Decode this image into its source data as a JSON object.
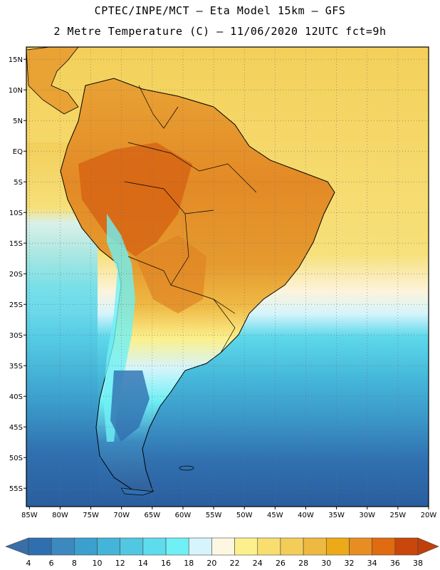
{
  "title_line1": "CPTEC/INPE/MCT –  Eta Model 15km – GFS",
  "title_line2": "2 Metre Temperature (C) – 11/06/2020 12UTC fct=9h",
  "map": {
    "lat_labels": [
      "15N",
      "10N",
      "5N",
      "EQ",
      "5S",
      "10S",
      "15S",
      "20S",
      "25S",
      "30S",
      "35S",
      "40S",
      "45S",
      "50S",
      "55S"
    ],
    "lon_labels": [
      "85W",
      "80W",
      "75W",
      "70W",
      "65W",
      "60W",
      "55W",
      "50W",
      "45W",
      "40W",
      "35W",
      "30W",
      "25W",
      "20W"
    ],
    "lat_values": [
      15,
      10,
      5,
      0,
      -5,
      -10,
      -15,
      -20,
      -25,
      -30,
      -35,
      -40,
      -45,
      -50,
      -55
    ],
    "lon_values": [
      -85,
      -80,
      -75,
      -70,
      -65,
      -60,
      -55,
      -50,
      -45,
      -40,
      -35,
      -30,
      -25,
      -20
    ],
    "extent": {
      "lon_min": -85.5,
      "lon_max": -20,
      "lat_min": -58,
      "lat_max": 17
    }
  },
  "colorbar": {
    "labels": [
      "4",
      "6",
      "8",
      "10",
      "12",
      "14",
      "16",
      "18",
      "20",
      "22",
      "24",
      "26",
      "28",
      "30",
      "32",
      "34",
      "36",
      "38"
    ],
    "colors": [
      "#3a6ea8",
      "#2f6fb0",
      "#3c89c0",
      "#3ba0cd",
      "#44b5d8",
      "#52c7e2",
      "#5edcec",
      "#6ff0f5",
      "#d6f4fb",
      "#fdf7e2",
      "#fbf08c",
      "#f7de6e",
      "#f3cd58",
      "#eeb941",
      "#ecaa19",
      "#e88d22",
      "#e06b10",
      "#c9470a",
      "#c0400a"
    ]
  }
}
